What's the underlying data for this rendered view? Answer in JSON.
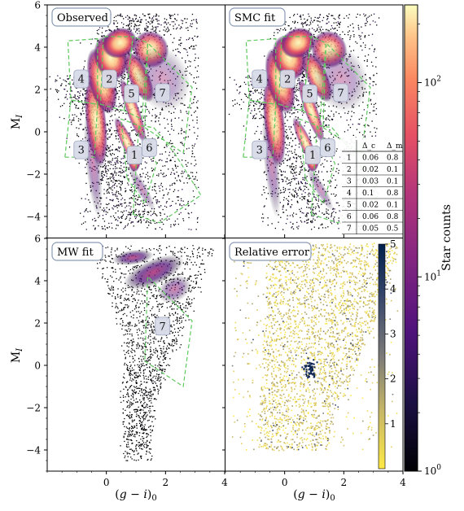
{
  "figure": {
    "colorbar_label": "Star counts",
    "colorbar_ticks": [
      "10^0",
      "10^1",
      "10^2"
    ],
    "y_axis_label": "M_I",
    "x_axis_label": "(g − i)_0"
  },
  "chart_data": [
    {
      "type": "heatmap",
      "title": "Observed",
      "xlabel": "",
      "ylabel": "M_I",
      "xlim": [
        -2,
        4
      ],
      "ylim": [
        6,
        -5
      ],
      "yticks": [
        "−4",
        "−2",
        "0",
        "2",
        "4",
        "6"
      ],
      "regions": [
        "1",
        "2",
        "3",
        "4",
        "5",
        "6",
        "7"
      ],
      "colorscale": "magma, log",
      "grid": false
    },
    {
      "type": "heatmap",
      "title": "SMC fit",
      "xlabel": "",
      "ylabel": "",
      "xlim": [
        -2,
        4
      ],
      "ylim": [
        6,
        -5
      ],
      "regions": [
        "1",
        "2",
        "3",
        "4",
        "5",
        "6",
        "7"
      ],
      "colorscale": "magma, log",
      "grid": false
    },
    {
      "type": "heatmap",
      "title": "MW fit",
      "xlabel": "(g − i)_0",
      "ylabel": "M_I",
      "xlim": [
        -2,
        4
      ],
      "ylim": [
        6,
        -5
      ],
      "xticks": [
        "0",
        "2",
        "4"
      ],
      "yticks": [
        "−4",
        "−2",
        "0",
        "2",
        "4",
        "6"
      ],
      "regions": [
        "7"
      ],
      "colorscale": "magma, log",
      "grid": false
    },
    {
      "type": "heatmap",
      "title": "Relative error",
      "xlabel": "(g − i)_0",
      "ylabel": "",
      "xlim": [
        -2,
        4
      ],
      "ylim": [
        6,
        -5
      ],
      "xticks": [
        "0",
        "2",
        "4"
      ],
      "colorbar_ticks": [
        "1",
        "2",
        "3",
        "4",
        "5"
      ],
      "colorscale": "cividis reversed, linear 0–5",
      "grid": false
    },
    {
      "type": "table",
      "columns": [
        "",
        "Δ_c",
        "Δ_m"
      ],
      "rows": [
        [
          "1",
          "0.06",
          "0.8"
        ],
        [
          "2",
          "0.02",
          "0.1"
        ],
        [
          "3",
          "0.03",
          "0.1"
        ],
        [
          "4",
          "0.1",
          "0.8"
        ],
        [
          "5",
          "0.02",
          "0.1"
        ],
        [
          "6",
          "0.06",
          "0.8"
        ],
        [
          "7",
          "0.05",
          "0.5"
        ]
      ]
    }
  ],
  "colors": {
    "region_outline": "#5ec95e",
    "density_high": "#fcfdbf",
    "density_low": "#000004",
    "error_low": "#f4e36a",
    "error_high": "#00204c"
  }
}
